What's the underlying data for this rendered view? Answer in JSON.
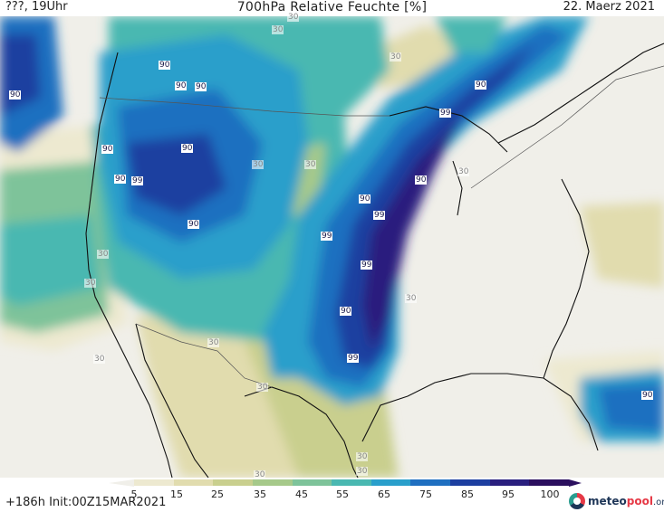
{
  "header": {
    "left_text": "???, 19Uhr",
    "title": "700hPa Relative Feuchte [%]",
    "date": "22. Maerz 2021"
  },
  "footer": {
    "init_text": "+186h Init:00Z15MAR2021",
    "logo_prefix": "meteo",
    "logo_mid": "pool",
    "logo_suffix": ".org"
  },
  "colorbar": {
    "ticks": [
      "5",
      "15",
      "25",
      "35",
      "45",
      "55",
      "65",
      "75",
      "85",
      "95",
      "100"
    ],
    "colors": [
      "#f0efe9",
      "#ede9d0",
      "#e1dcae",
      "#c9cf8e",
      "#a6c98a",
      "#7ec39a",
      "#4ab8b1",
      "#2a9fcb",
      "#1f6fc0",
      "#1d3fa0",
      "#2a1f7e",
      "#2b0f5e"
    ]
  },
  "contour_labels": [
    {
      "text": "90",
      "tone": "dark"
    },
    {
      "text": "90",
      "tone": "dark"
    },
    {
      "text": "90",
      "tone": "dark"
    },
    {
      "text": "90",
      "tone": "dark"
    },
    {
      "text": "90",
      "tone": "dark"
    },
    {
      "text": "90",
      "tone": "dark"
    },
    {
      "text": "99",
      "tone": "dark"
    },
    {
      "text": "90",
      "tone": "dark"
    },
    {
      "text": "30",
      "tone": "light"
    },
    {
      "text": "30",
      "tone": "light"
    },
    {
      "text": "30",
      "tone": "light"
    },
    {
      "text": "30",
      "tone": "light"
    },
    {
      "text": "90",
      "tone": "dark"
    },
    {
      "text": "99",
      "tone": "dark"
    },
    {
      "text": "30",
      "tone": "light"
    },
    {
      "text": "90",
      "tone": "dark"
    },
    {
      "text": "99",
      "tone": "dark"
    },
    {
      "text": "90",
      "tone": "dark"
    },
    {
      "text": "99",
      "tone": "dark"
    },
    {
      "text": "99",
      "tone": "dark"
    },
    {
      "text": "90",
      "tone": "dark"
    },
    {
      "text": "30",
      "tone": "light"
    },
    {
      "text": "30",
      "tone": "light"
    },
    {
      "text": "30",
      "tone": "light"
    },
    {
      "text": "30",
      "tone": "light"
    },
    {
      "text": "99",
      "tone": "dark"
    },
    {
      "text": "90",
      "tone": "dark"
    },
    {
      "text": "30",
      "tone": "light"
    },
    {
      "text": "30",
      "tone": "light"
    },
    {
      "text": "30",
      "tone": "light"
    },
    {
      "text": "30",
      "tone": "light"
    },
    {
      "text": "30",
      "tone": "light"
    },
    {
      "text": "90",
      "tone": "dark"
    },
    {
      "text": "30",
      "tone": "light"
    }
  ]
}
